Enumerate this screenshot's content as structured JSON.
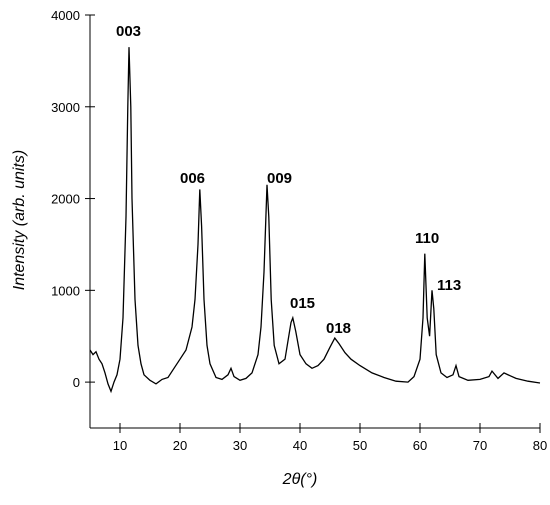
{
  "chart_data": {
    "type": "line",
    "xlabel": "2θ(°)",
    "ylabel": "Intensity (arb. units)",
    "color": "#000000",
    "x": [
      5,
      5.5,
      6,
      6.5,
      7,
      7.5,
      8,
      8.5,
      9,
      9.5,
      10,
      10.5,
      11,
      11.3,
      11.5,
      11.8,
      12,
      12.5,
      13,
      13.5,
      14,
      15,
      16,
      17,
      18,
      19,
      20,
      21,
      22,
      22.5,
      23,
      23.3,
      23.6,
      24,
      24.5,
      25,
      26,
      27,
      28,
      28.5,
      29,
      30,
      31,
      32,
      33,
      33.5,
      34,
      34.5,
      34.8,
      35.2,
      35.7,
      36.5,
      37.5,
      38,
      38.5,
      38.8,
      39.3,
      40,
      41,
      42,
      43,
      44,
      45,
      45.8,
      46.5,
      47.5,
      48.5,
      50,
      52,
      54,
      56,
      58,
      59,
      60,
      60.5,
      60.8,
      61.2,
      61.6,
      62,
      62.3,
      62.7,
      63.5,
      64.5,
      65.5,
      66,
      66.5,
      68,
      70,
      71.5,
      72,
      73,
      74,
      75,
      76,
      78,
      80
    ],
    "values": [
      350,
      300,
      330,
      250,
      200,
      100,
      -20,
      -100,
      0,
      80,
      250,
      700,
      1800,
      3000,
      3650,
      3000,
      2000,
      900,
      400,
      200,
      80,
      20,
      -20,
      30,
      50,
      150,
      250,
      350,
      600,
      900,
      1500,
      2100,
      1700,
      900,
      400,
      200,
      50,
      30,
      80,
      150,
      60,
      20,
      40,
      100,
      300,
      600,
      1200,
      2150,
      1800,
      900,
      400,
      200,
      250,
      450,
      650,
      700,
      550,
      300,
      200,
      150,
      180,
      250,
      380,
      480,
      420,
      320,
      250,
      180,
      100,
      50,
      10,
      0,
      60,
      250,
      700,
      1400,
      700,
      500,
      1000,
      800,
      300,
      100,
      50,
      80,
      180,
      60,
      20,
      30,
      60,
      120,
      40,
      100,
      70,
      40,
      10,
      -10
    ],
    "xlim": [
      5,
      80
    ],
    "xticks": [
      10,
      20,
      30,
      40,
      50,
      60,
      70,
      80
    ],
    "ylim": [
      -500,
      4000
    ],
    "yticks": [
      0,
      1000,
      2000,
      3000,
      4000
    ],
    "annotations": [
      "003",
      "006",
      "009",
      "015",
      "018",
      "110",
      "113"
    ]
  }
}
